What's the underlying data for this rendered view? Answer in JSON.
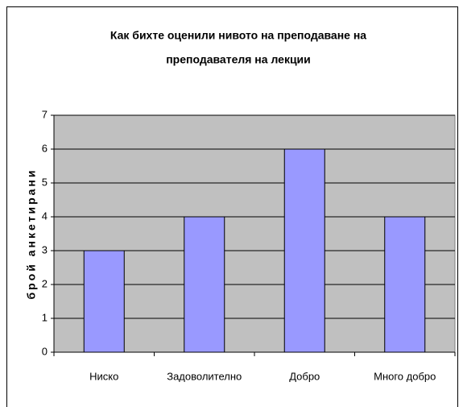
{
  "chart_data": {
    "type": "bar",
    "title": [
      "Как бихте оценили нивото на преподаване на",
      "преподавателя на лекции"
    ],
    "y_label": "брой анкетирани",
    "categories": [
      "Ниско",
      "Задоволително",
      "Добро",
      "Много добро"
    ],
    "values": [
      3,
      4,
      6,
      4
    ],
    "color": "#9999ff",
    "ylim": [
      0,
      7
    ],
    "yticks": [
      0,
      1,
      2,
      3,
      4,
      5,
      6,
      7
    ],
    "grid": true
  }
}
